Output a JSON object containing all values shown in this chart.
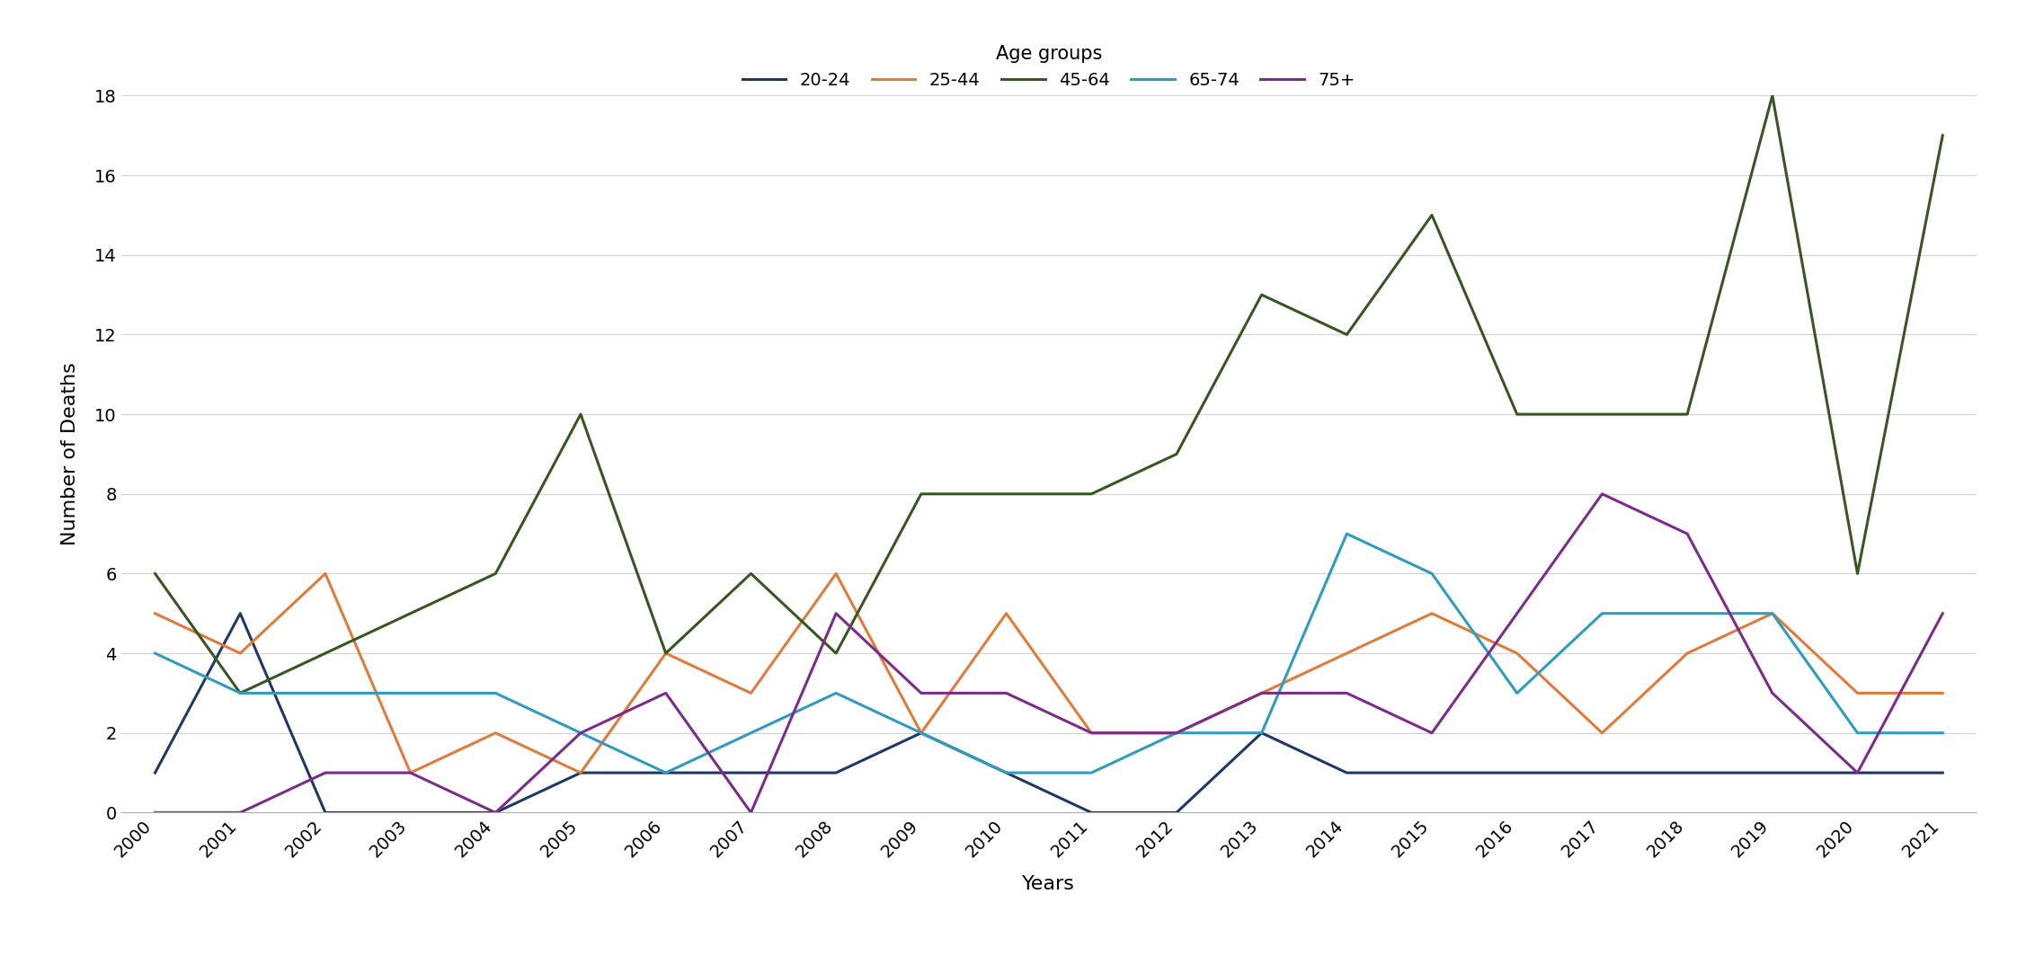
{
  "years": [
    2000,
    2001,
    2002,
    2003,
    2004,
    2005,
    2006,
    2007,
    2008,
    2009,
    2010,
    2011,
    2012,
    2013,
    2014,
    2015,
    2016,
    2017,
    2018,
    2019,
    2020,
    2021
  ],
  "series": {
    "20-24": [
      1,
      5,
      0,
      0,
      0,
      1,
      1,
      1,
      1,
      2,
      1,
      0,
      0,
      2,
      1,
      1,
      1,
      1,
      1,
      1,
      1,
      1
    ],
    "25-44": [
      5,
      4,
      6,
      1,
      2,
      1,
      4,
      3,
      6,
      2,
      5,
      2,
      2,
      3,
      4,
      5,
      4,
      2,
      4,
      5,
      3,
      3
    ],
    "45-64": [
      6,
      3,
      4,
      5,
      6,
      10,
      4,
      6,
      4,
      8,
      8,
      8,
      9,
      13,
      12,
      15,
      10,
      10,
      10,
      18,
      6,
      17
    ],
    "65-74": [
      4,
      3,
      3,
      3,
      3,
      2,
      1,
      2,
      3,
      2,
      1,
      1,
      2,
      2,
      7,
      6,
      3,
      5,
      5,
      5,
      2,
      2
    ],
    "75+": [
      0,
      0,
      1,
      1,
      0,
      2,
      3,
      0,
      5,
      3,
      3,
      2,
      2,
      3,
      3,
      2,
      5,
      8,
      7,
      3,
      1,
      5
    ]
  },
  "series_order": [
    "20-24",
    "25-44",
    "45-64",
    "65-74",
    "75+"
  ],
  "colors": {
    "20-24": "#1f3864",
    "25-44": "#e07b39",
    "45-64": "#375623",
    "65-74": "#2e9bbf",
    "75+": "#7b2c8b"
  },
  "xlabel": "Years",
  "ylabel": "Number of Deaths",
  "legend_title": "Age groups",
  "ylim": [
    0,
    18
  ],
  "yticks": [
    0,
    2,
    4,
    6,
    8,
    10,
    12,
    14,
    16,
    18
  ],
  "background_color": "#ffffff",
  "grid_color": "#d3d3d3"
}
